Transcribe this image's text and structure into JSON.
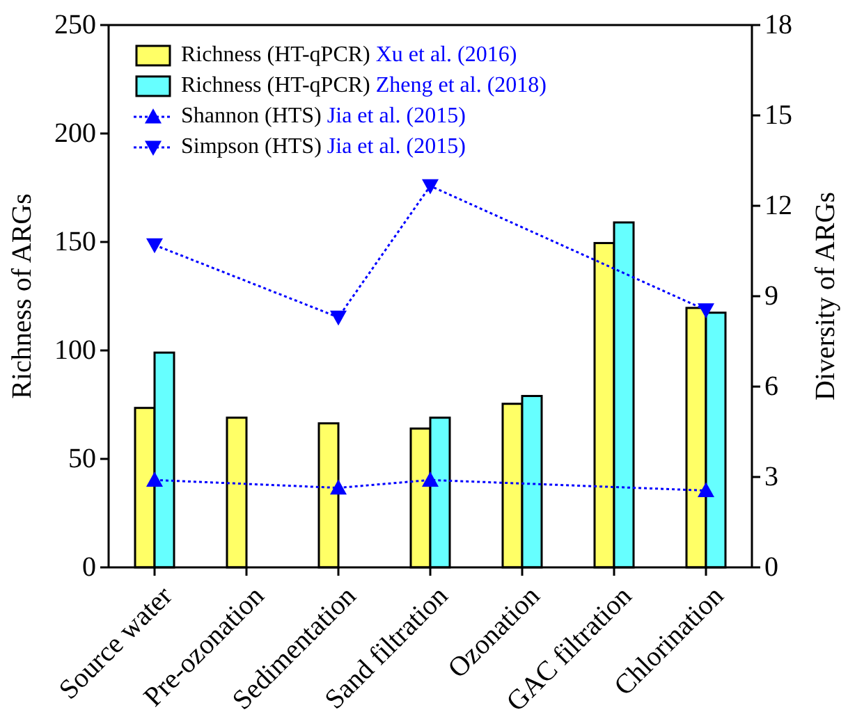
{
  "chart_data": {
    "type": "bar",
    "ylabel": "Richness of ARGs",
    "y2label": "Diversity of ARGs",
    "categories": [
      "Source water",
      "Pre-ozonation",
      "Sedimentation",
      "Sand filtration",
      "Ozonation",
      "GAC filtration",
      "Chlorination"
    ],
    "series": [
      {
        "name": "Richness (HT-qPCR) Xu et al. (2016)",
        "color": "#ffff66",
        "values": [
          73.5,
          69,
          66.4,
          64,
          75.4,
          149.5,
          119.6
        ]
      },
      {
        "name": "Richness (HT-qPCR) Zheng et al. (2018)",
        "color": "#66ffff",
        "values": [
          99,
          null,
          null,
          69,
          79,
          159,
          117.4
        ]
      },
      {
        "name": "Shannon (HTS) Jia et al. (2015)",
        "type": "line",
        "axis": "y2",
        "color": "#0000ff",
        "marker": "triangle",
        "line_style": "dotted",
        "values": [
          2.9,
          null,
          2.64,
          2.9,
          null,
          null,
          2.55
        ]
      },
      {
        "name": "Simpson (HTS) Jia et al. (2015)",
        "type": "line",
        "axis": "y2",
        "color": "#0000ff",
        "marker": "triangle-down",
        "line_style": "dotted",
        "values": [
          10.7,
          null,
          8.3,
          12.66,
          null,
          null,
          8.54
        ]
      }
    ],
    "ylim": [
      0,
      250
    ],
    "yticks": [
      0,
      50,
      100,
      150,
      200,
      250
    ],
    "y2lim": [
      0,
      18
    ],
    "y2ticks": [
      0,
      3,
      6,
      9,
      12,
      15,
      18
    ],
    "legend": "top left",
    "grid": false
  }
}
